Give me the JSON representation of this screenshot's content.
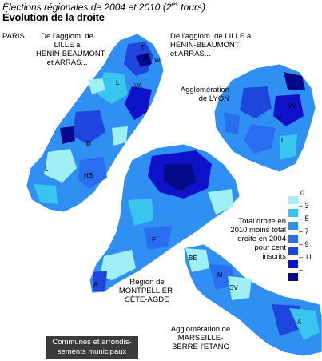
{
  "header": {
    "subtitle_prefix": "Élections régionales de 2004 et 2010 (2",
    "subtitle_sup": "es",
    "subtitle_suffix": " tours)",
    "title": "Évolution de la droite"
  },
  "labels": {
    "paris": "PARIS",
    "lille_left": [
      "De l'agglom. de",
      "LILLE à",
      "HÉNIN-BEAUMONT",
      "et ARRAS..."
    ],
    "lille_right": [
      "De l'agglom. de LILLE à",
      "HÉNIN-BEAUMONT",
      "et ARRAS..."
    ],
    "lyon": [
      "Agglomération",
      "de LYON"
    ],
    "montpellier": [
      "Région de",
      "MONTPELLIER-",
      "SÈTE-AGDE"
    ],
    "marseille": [
      "Agglomération de",
      "MARSEILLE-",
      "BERRE-l'ÉTANG"
    ]
  },
  "map_codes": {
    "paris": [
      "T",
      "R",
      "W",
      "L",
      "VA",
      "D",
      "HB",
      "L"
    ],
    "lyon": [
      "VV",
      "V",
      "L"
    ],
    "montpellier": [
      "M",
      "F",
      "A"
    ],
    "marseille": [
      "BÉ",
      "M",
      "SV",
      "A"
    ]
  },
  "legend": {
    "description": [
      "Total droite en",
      "2010 moins total",
      "droite en 2004",
      "pour cent",
      "inscrits"
    ],
    "ticks": [
      "0",
      "– 3",
      "– 5",
      "– 7",
      "– 9",
      "– 11",
      "–"
    ],
    "colors": [
      "#9ff0f5",
      "#38c6ee",
      "#2f8ff2",
      "#2a6ef0",
      "#1e46dc",
      "#0f12c8",
      "#050a8a"
    ]
  },
  "note": [
    "Communes et arrondis-",
    "sements municipaux"
  ]
}
